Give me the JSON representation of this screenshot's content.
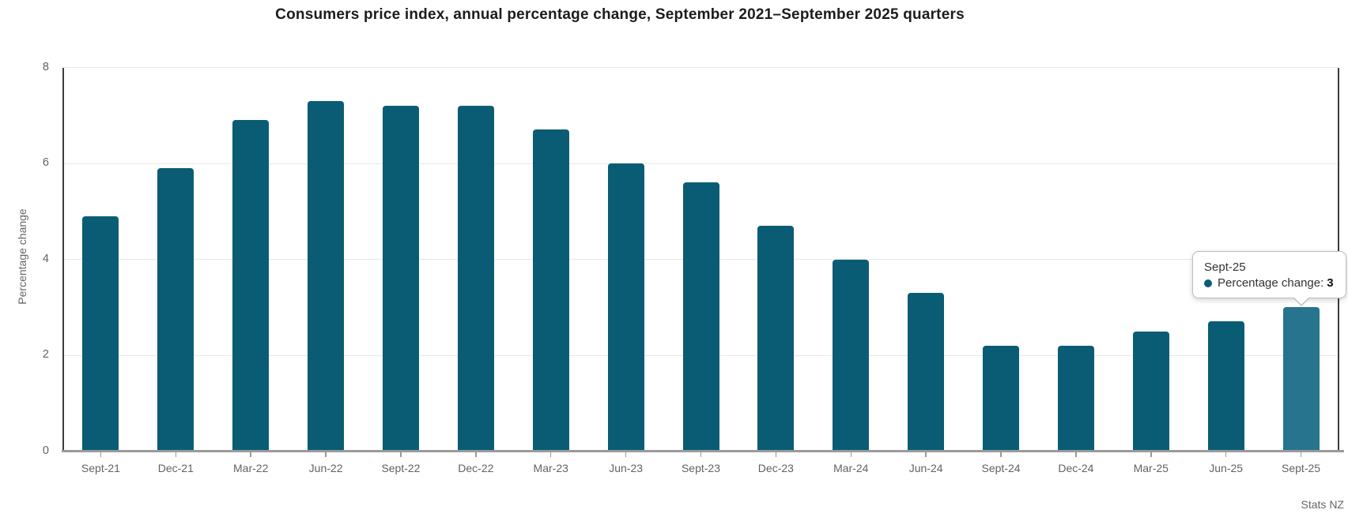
{
  "title": "Consumers price index, annual percentage change, September 2021–September 2025 quarters",
  "source": "Stats NZ",
  "colors": {
    "bar": "#0a5c75",
    "bar_hover": "#26748d",
    "grid": "#e8e8e8",
    "axis_dark": "#3d3d3d",
    "baseline": "#9a9a9a",
    "muted_text": "#5f6366",
    "title_text": "#1c1c1c"
  },
  "chart_data": {
    "type": "bar",
    "title": "Consumers price index, annual percentage change, September 2021–September 2025 quarters",
    "xlabel": "",
    "ylabel": "Percentage change",
    "categories": [
      "Sept-21",
      "Dec-21",
      "Mar-22",
      "Jun-22",
      "Sept-22",
      "Dec-22",
      "Mar-23",
      "Jun-23",
      "Sept-23",
      "Dec-23",
      "Mar-24",
      "Jun-24",
      "Sept-24",
      "Dec-24",
      "Mar-25",
      "Jun-25",
      "Sept-25"
    ],
    "values": [
      4.9,
      5.9,
      6.9,
      7.3,
      7.2,
      7.2,
      6.7,
      6.0,
      5.6,
      4.7,
      4.0,
      3.3,
      2.2,
      2.2,
      2.5,
      2.7,
      3.0
    ],
    "series_name": "Percentage change",
    "ylim": [
      0,
      8
    ],
    "yticks": [
      0,
      2,
      4,
      6,
      8
    ],
    "grid": true,
    "legend": "none",
    "highlighted_category": "Sept-25"
  },
  "tooltip": {
    "category": "Sept-25",
    "label": "Percentage change:",
    "value": "3"
  }
}
